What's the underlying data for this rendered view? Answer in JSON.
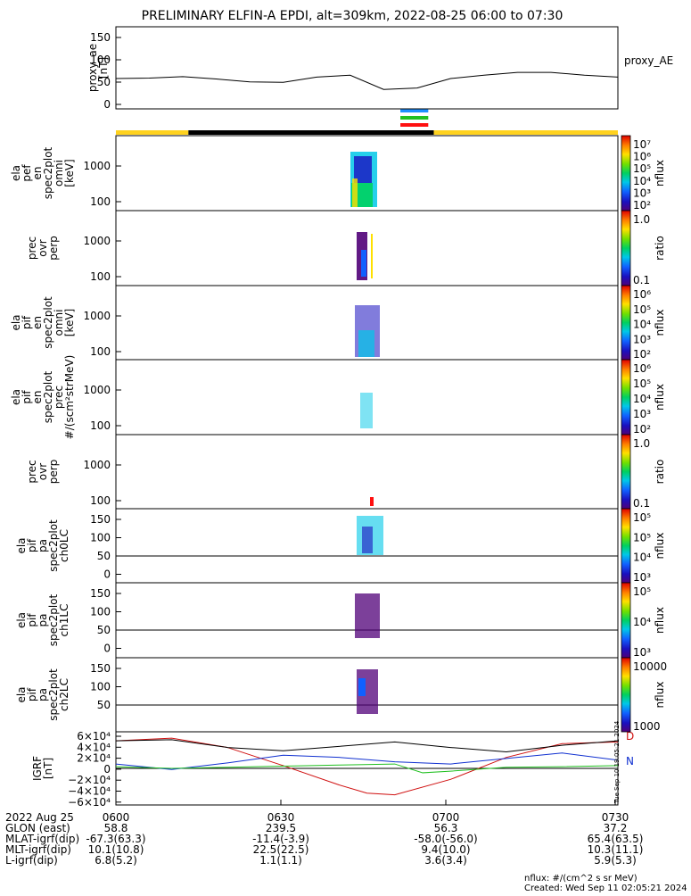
{
  "title": "PRELIMINARY ELFIN-A EPDI, alt=309km, 2022-08-25 06:00 to 07:30",
  "panels": [
    {
      "id": "proxy_ae",
      "label_lines": [
        "proxy_ae",
        "[nT]"
      ],
      "right_label": "proxy_AE",
      "yticks": [
        "150",
        "100",
        "50",
        "0"
      ]
    },
    {
      "id": "pef",
      "label_lines": [
        "ela",
        "pef",
        "en",
        "spec2plot",
        "omni",
        "[keV]"
      ],
      "yticks": [
        "1000",
        "100"
      ],
      "cbar_ticks": [
        "10⁷",
        "10⁶",
        "10⁵",
        "10⁴",
        "10³",
        "10²"
      ],
      "cbar_unit": "nflux"
    },
    {
      "id": "prec_ovr_perp_e",
      "label_lines": [
        "prec",
        "ovr",
        "perp"
      ],
      "yticks": [
        "1000",
        "100"
      ],
      "cbar_ticks": [
        "1.0",
        "0.1"
      ],
      "cbar_unit": "ratio"
    },
    {
      "id": "pif",
      "label_lines": [
        "ela",
        "pif",
        "en",
        "spec2plot",
        "omni",
        "[keV]"
      ],
      "yticks": [
        "1000",
        "100"
      ],
      "cbar_ticks": [
        "10⁶",
        "10⁵",
        "10⁴",
        "10³",
        "10²"
      ],
      "cbar_unit": "nflux"
    },
    {
      "id": "pif_prec",
      "label_lines": [
        "ela",
        "pif",
        "en",
        "spec2plot",
        "prec",
        "#/(scm²strMeV)"
      ],
      "yticks": [
        "1000",
        "100"
      ],
      "cbar_ticks": [
        "10⁶",
        "10⁵",
        "10⁴",
        "10³",
        "10²"
      ],
      "cbar_unit": "nflux"
    },
    {
      "id": "prec_ovr_perp_i",
      "label_lines": [
        "prec",
        "ovr",
        "perp"
      ],
      "yticks": [
        "1000",
        "100"
      ],
      "cbar_ticks": [
        "1.0",
        "0.1"
      ],
      "cbar_unit": "ratio"
    },
    {
      "id": "ch0",
      "label_lines": [
        "ela",
        "pif",
        "pa",
        "spec2plot",
        "ch0LC"
      ],
      "yticks": [
        "150",
        "100",
        "50",
        "0"
      ],
      "cbar_ticks": [
        "10⁵",
        "10⁵",
        "10⁴",
        "10³"
      ],
      "cbar_unit": "nflux"
    },
    {
      "id": "ch1",
      "label_lines": [
        "ela",
        "pif",
        "pa",
        "spec2plot",
        "ch1LC"
      ],
      "yticks": [
        "150",
        "100",
        "50",
        "0"
      ],
      "cbar_ticks": [
        "10⁵",
        "10⁴",
        "10³"
      ],
      "cbar_unit": "nflux"
    },
    {
      "id": "ch2",
      "label_lines": [
        "ela",
        "pif",
        "pa",
        "spec2plot",
        "ch2LC"
      ],
      "yticks": [
        "150",
        "100",
        "50"
      ],
      "cbar_ticks": [
        "10000",
        "1000"
      ],
      "cbar_unit": "nflux"
    },
    {
      "id": "igrf",
      "label_lines": [
        "IGRF",
        "[nT]"
      ],
      "yticks": [
        "6×10⁴",
        "4×10⁴",
        "2×10⁴",
        "0",
        "−2×10⁴",
        "−4×10⁴",
        "−6×10⁴"
      ],
      "right_labels": [
        "D",
        "N"
      ]
    }
  ],
  "xticks": [
    "0600",
    "0630",
    "0700",
    "0730"
  ],
  "ephemeris": {
    "labels": [
      "2022 Aug 25",
      "GLON (east)",
      "MLAT-igrf(dip)",
      "MLT-igrf(dip)",
      "L-igrf(dip)"
    ],
    "columns": [
      [
        "0600",
        "58.8",
        "-67.3(63.3)",
        "10.1(10.8)",
        "6.8(5.2)"
      ],
      [
        "0630",
        "239.5",
        "-11.4(-3.9)",
        "22.5(22.5)",
        "1.1(1.1)"
      ],
      [
        "0700",
        "56.3",
        "-58.0(-56.0)",
        "9.4(10.0)",
        "3.6(3.4)"
      ],
      [
        "0730",
        "37.2",
        "65.4(63.5)",
        "10.3(11.1)",
        "5.9(5.3)"
      ]
    ]
  },
  "footer": {
    "units": "nflux: #/(cm^2 s sr MeV)",
    "created": "Created: Wed Sep 11 02:05:21 2024",
    "sidestamp": "Tue Sep 10 19:05:21 2024"
  },
  "colors": {
    "sci_zone_yellow": "#ffd21e",
    "sci_zone_black": "#000000",
    "bar_blue": "#1e90ff",
    "bar_green": "#22c022",
    "bar_red": "#ff1010",
    "igrf_D": "#d01010",
    "igrf_N": "#1030d0",
    "igrf_E": "#20c020",
    "igrf_total": "#000000"
  },
  "chart_data": {
    "type": "line",
    "x_range": [
      "06:00",
      "07:30"
    ],
    "proxy_ae": {
      "ylim": [
        0,
        150
      ],
      "x_minutes": [
        0,
        6,
        12,
        18,
        24,
        30,
        36,
        42,
        48,
        54,
        60,
        66,
        72,
        78,
        84,
        90
      ],
      "values": [
        45,
        46,
        49,
        44,
        38,
        37,
        48,
        52,
        22,
        25,
        45,
        52,
        58,
        58,
        52,
        48
      ]
    },
    "science_zones": [
      {
        "start": "06:00",
        "end": "06:13",
        "color": "yellow"
      },
      {
        "start": "06:13",
        "end": "06:57",
        "color": "black"
      },
      {
        "start": "06:57",
        "end": "07:30",
        "color": "yellow"
      }
    ],
    "epd_bars": {
      "start": "06:51",
      "end": "06:56",
      "colors": [
        "blue",
        "green",
        "red"
      ]
    },
    "igrf": {
      "ylim": [
        -60000,
        60000
      ],
      "series": [
        {
          "name": "D",
          "values_x": [
            0,
            10,
            20,
            30,
            40,
            45,
            50,
            60,
            70,
            80,
            90
          ],
          "values_y": [
            50000,
            55000,
            38000,
            5000,
            -30000,
            -45000,
            -48000,
            -20000,
            20000,
            45000,
            48000
          ]
        },
        {
          "name": "N",
          "values_x": [
            0,
            10,
            20,
            30,
            40,
            50,
            55,
            60,
            70,
            80,
            90
          ],
          "values_y": [
            8000,
            -2000,
            10000,
            24000,
            20000,
            12000,
            10000,
            8000,
            18000,
            28000,
            15000
          ]
        },
        {
          "name": "E",
          "values_y": [
            3000,
            0,
            2000,
            4000,
            6000,
            8000,
            -8000,
            -5000,
            2000,
            3000,
            5000
          ],
          "values_x": [
            0,
            10,
            20,
            30,
            40,
            50,
            55,
            60,
            70,
            80,
            90
          ]
        },
        {
          "name": "total",
          "values_x": [
            0,
            10,
            20,
            30,
            40,
            50,
            60,
            70,
            80,
            90
          ],
          "values_y": [
            50000,
            52000,
            38000,
            32000,
            40000,
            48000,
            38000,
            30000,
            42000,
            50000
          ]
        }
      ]
    }
  }
}
